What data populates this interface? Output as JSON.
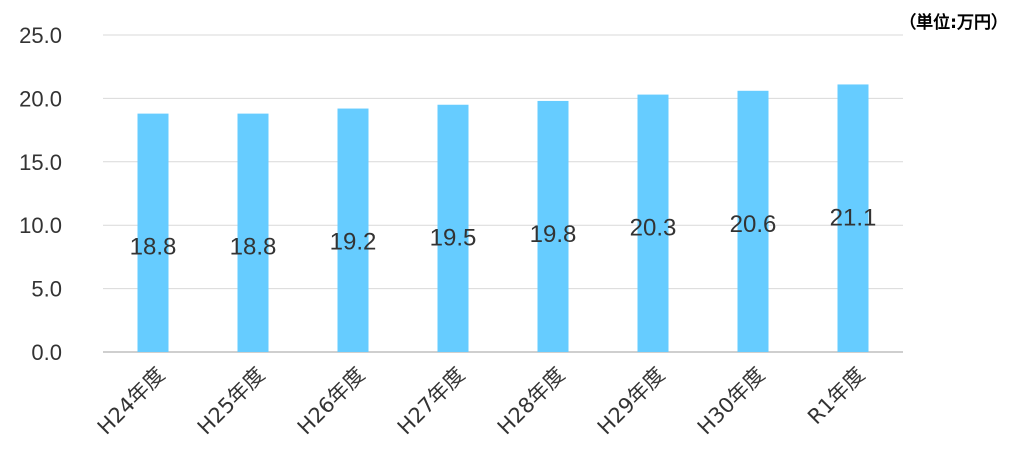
{
  "unit_label": "（単位:万円）",
  "colors": {
    "bar": "#66CCFF",
    "grid": "#D9D9D9",
    "axis": "#BFBFBF",
    "text": "#333333"
  },
  "chart_data": {
    "type": "bar",
    "categories": [
      "H24年度",
      "H25年度",
      "H26年度",
      "H27年度",
      "H28年度",
      "H29年度",
      "H30年度",
      "R1年度"
    ],
    "values": [
      18.8,
      18.8,
      19.2,
      19.5,
      19.8,
      20.3,
      20.6,
      21.1
    ],
    "data_labels": [
      "18.8",
      "18.8",
      "19.2",
      "19.5",
      "19.8",
      "20.3",
      "20.6",
      "21.1"
    ],
    "y_ticks": [
      "0.0",
      "5.0",
      "10.0",
      "15.0",
      "20.0",
      "25.0"
    ],
    "ylim": [
      0,
      25
    ],
    "grid": true,
    "legend": "none"
  }
}
